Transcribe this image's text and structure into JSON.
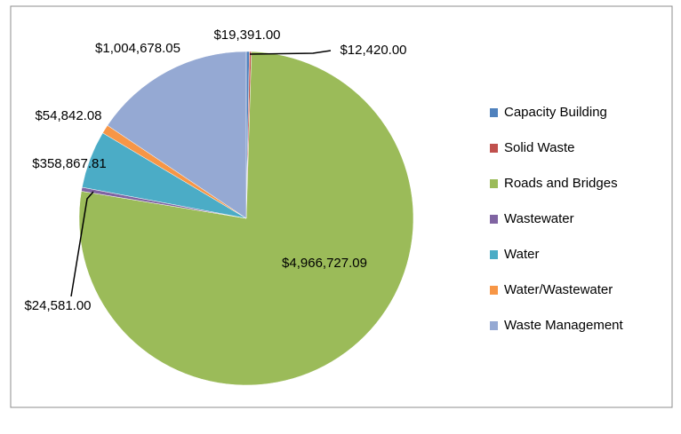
{
  "chart_data": {
    "type": "pie",
    "categories": [
      "Capacity Building",
      "Solid Waste",
      "Roads and Bridges",
      "Wastewater",
      "Water",
      "Water/Wastewater",
      "Waste Management"
    ],
    "values": [
      19391.0,
      12420.0,
      4966727.09,
      24581.0,
      358867.81,
      54842.08,
      1004678.05
    ],
    "value_labels": [
      "$19,391.00",
      "$12,420.00",
      "$4,966,727.09",
      "$24,581.00",
      "$358,867.81",
      "$54,842.08",
      "$1,004,678.05"
    ],
    "colors": [
      "#4f81bd",
      "#c0504d",
      "#9bbb59",
      "#8064a2",
      "#4bacc6",
      "#f79646",
      "#95a9d3"
    ],
    "legend": "right"
  }
}
